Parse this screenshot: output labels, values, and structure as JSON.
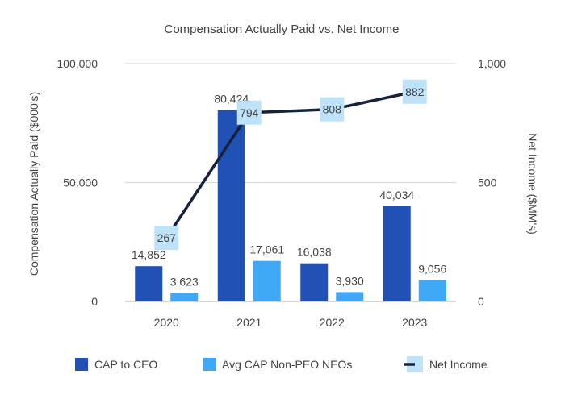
{
  "chart_data": {
    "type": "bar",
    "title": "Compensation Actually Paid vs. Net Income",
    "categories": [
      "2020",
      "2021",
      "2022",
      "2023"
    ],
    "ylabel": "Compensation Actually Paid ($000's)",
    "y2label": "Net Income ($MM's)",
    "ylim": [
      0,
      100000
    ],
    "y2lim": [
      0,
      1000
    ],
    "yticks": [
      "0",
      "50,000",
      "100,000"
    ],
    "y2ticks": [
      "0",
      "500",
      "1,000"
    ],
    "series": [
      {
        "name": "CAP to CEO",
        "kind": "bar",
        "axis": "left",
        "values": [
          14852,
          80424,
          16038,
          40034
        ],
        "labels": [
          "14,852",
          "80,424",
          "16,038",
          "40,034"
        ],
        "color": "#2251b5"
      },
      {
        "name": "Avg CAP Non-PEO NEOs",
        "kind": "bar",
        "axis": "left",
        "values": [
          3623,
          17061,
          3930,
          9056
        ],
        "labels": [
          "3,623",
          "17,061",
          "3,930",
          "9,056"
        ],
        "color": "#3fa9f5"
      },
      {
        "name": "Net Income",
        "kind": "line",
        "axis": "right",
        "values": [
          267,
          794,
          808,
          882
        ],
        "labels": [
          "267",
          "794",
          "808",
          "882"
        ],
        "color": "#14223d",
        "label_bg": "#bfe2fb"
      }
    ],
    "legend": "bottom"
  }
}
